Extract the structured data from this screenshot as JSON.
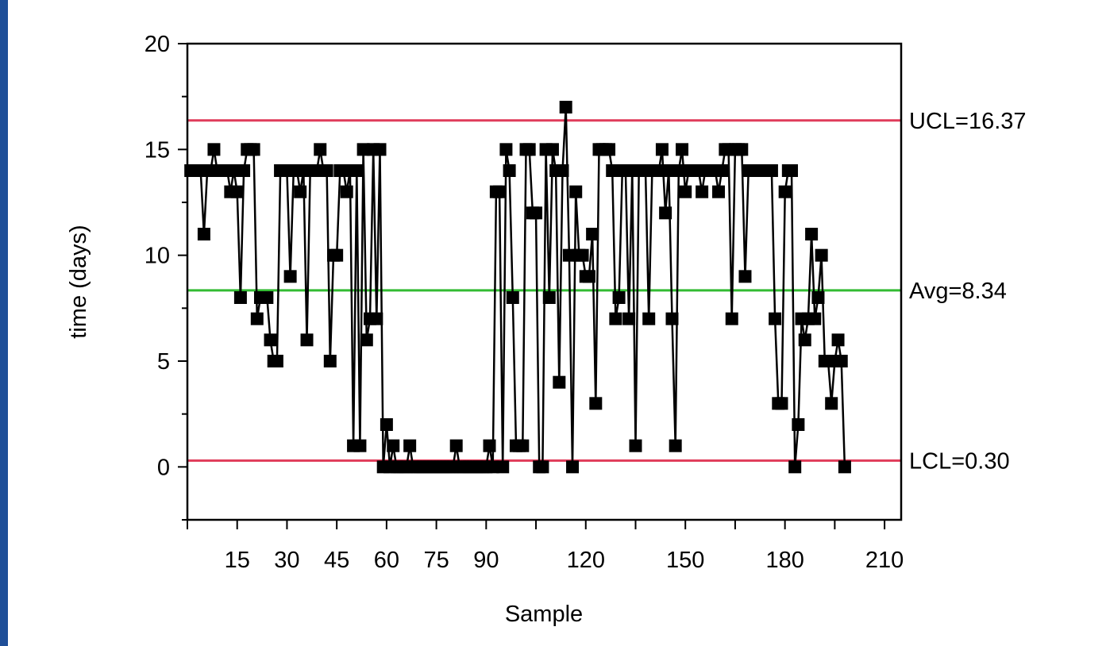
{
  "colors": {
    "background": "#1f4f98",
    "panel": "#ffffff",
    "limit_line": "#e03c5a",
    "avg_line": "#33bb33",
    "series": "#000000"
  },
  "chart_data": {
    "type": "line",
    "title": "",
    "xlabel": "Sample",
    "ylabel": "time (days)",
    "xlim": [
      0,
      215
    ],
    "ylim": [
      -2.5,
      20
    ],
    "x_ticks": [
      15,
      30,
      45,
      60,
      75,
      90,
      120,
      150,
      180,
      210
    ],
    "x_tick_labels": [
      "15",
      "30",
      "45",
      "60",
      "75",
      "90",
      "120",
      "150",
      "180",
      "210"
    ],
    "x_minor_ticks": [
      0,
      105,
      135,
      165,
      195
    ],
    "y_ticks": [
      0,
      5,
      10,
      15,
      20
    ],
    "y_tick_labels": [
      "0",
      "5",
      "10",
      "15",
      "20"
    ],
    "y_minor_ticks": [
      -2.5,
      2.5,
      7.5,
      12.5,
      17.5
    ],
    "marker": "square",
    "grid": false,
    "reference_lines": [
      {
        "name": "UCL",
        "label": "UCL=16.37",
        "value": 16.37,
        "color": "#e03c5a"
      },
      {
        "name": "Avg",
        "label": "Avg=8.34",
        "value": 8.34,
        "color": "#33bb33"
      },
      {
        "name": "LCL",
        "label": "LCL=0.30",
        "value": 0.3,
        "color": "#e03c5a"
      }
    ],
    "series": [
      {
        "x": [
          1,
          2,
          3,
          4,
          5,
          6,
          7,
          8,
          9,
          10,
          11,
          12,
          13,
          14,
          15,
          16,
          17,
          18,
          19,
          20,
          21,
          22,
          23,
          24,
          25,
          26,
          27,
          28,
          29,
          30,
          31,
          32,
          33,
          34,
          35,
          36,
          37,
          38,
          39,
          40,
          41,
          42,
          43,
          44,
          45,
          46,
          47,
          48,
          49,
          50,
          51,
          52,
          53,
          54,
          55,
          56,
          57,
          58,
          59,
          60,
          61,
          62,
          63,
          64,
          65,
          66,
          67,
          68,
          69,
          70,
          71,
          72,
          73,
          74,
          75,
          76,
          77,
          78,
          79,
          80,
          81,
          82,
          83,
          84,
          85,
          86,
          87,
          88,
          89,
          90,
          91,
          92,
          93,
          94,
          95,
          96,
          97,
          98,
          99,
          100,
          101,
          102,
          103,
          104,
          105,
          106,
          107,
          108,
          109,
          110,
          111,
          112,
          113,
          114,
          115,
          116,
          117,
          118,
          119,
          120,
          121,
          122,
          123,
          124,
          125,
          126,
          127,
          128,
          129,
          130,
          131,
          132,
          133,
          134,
          135,
          136,
          137,
          138,
          139,
          140,
          141,
          142,
          143,
          144,
          145,
          146,
          147,
          148,
          149,
          150,
          151,
          152,
          153,
          154,
          155,
          156,
          157,
          158,
          159,
          160,
          161,
          162,
          163,
          164,
          165,
          166,
          167,
          168,
          169,
          170,
          171,
          172,
          173,
          174,
          175,
          176,
          177,
          178,
          179,
          180,
          181,
          182,
          183,
          184,
          185,
          186,
          187,
          188,
          189,
          190,
          191,
          192,
          193,
          194,
          195,
          196,
          197,
          198
        ],
        "y": [
          14,
          14,
          14,
          14,
          11,
          14,
          14,
          15,
          14,
          14,
          14,
          14,
          13,
          14,
          13,
          8,
          14,
          15,
          15,
          15,
          7,
          8,
          8,
          8,
          6,
          5,
          5,
          14,
          14,
          14,
          9,
          14,
          14,
          13,
          14,
          6,
          14,
          14,
          14,
          15,
          14,
          14,
          5,
          10,
          10,
          14,
          14,
          13,
          14,
          1,
          14,
          1,
          15,
          6,
          7,
          15,
          7,
          15,
          0,
          2,
          0,
          1,
          0,
          0,
          0,
          0,
          1,
          0,
          0,
          0,
          0,
          0,
          0,
          0,
          0,
          0,
          0,
          0,
          0,
          0,
          1,
          0,
          0,
          0,
          0,
          0,
          0,
          0,
          0,
          0,
          1,
          0,
          13,
          13,
          0,
          15,
          14,
          8,
          1,
          1,
          1,
          15,
          15,
          12,
          12,
          0,
          0,
          15,
          8,
          15,
          14,
          4,
          14,
          17,
          10,
          0,
          13,
          10,
          10,
          9,
          9,
          11,
          3,
          15,
          15,
          15,
          15,
          14,
          7,
          8,
          14,
          14,
          7,
          14,
          1,
          14,
          14,
          14,
          7,
          14,
          14,
          14,
          15,
          12,
          14,
          7,
          1,
          14,
          15,
          13,
          14,
          14,
          14,
          14,
          13,
          14,
          14,
          14,
          14,
          13,
          14,
          15,
          15,
          7,
          15,
          15,
          15,
          9,
          14,
          14,
          14,
          14,
          14,
          14,
          14,
          14,
          7,
          3,
          3,
          13,
          14,
          14,
          0,
          2,
          7,
          6,
          7,
          11,
          7,
          8,
          10,
          5,
          5,
          3,
          5,
          6,
          5,
          0
        ]
      }
    ]
  }
}
